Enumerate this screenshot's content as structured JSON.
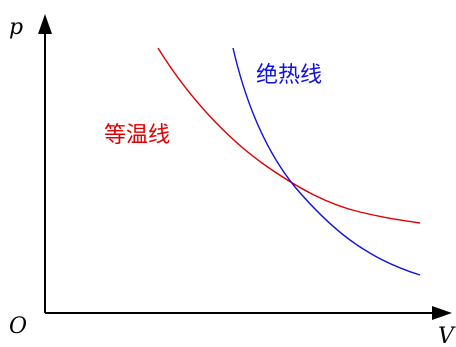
{
  "diagram": {
    "axis_y_label": "p",
    "axis_x_label": "V",
    "origin_label": "O",
    "isothermal": {
      "label": "等温线",
      "color": "#e00000"
    },
    "adiabatic": {
      "label": "绝热线",
      "color": "#1010e0"
    },
    "axis_color": "#000000"
  }
}
